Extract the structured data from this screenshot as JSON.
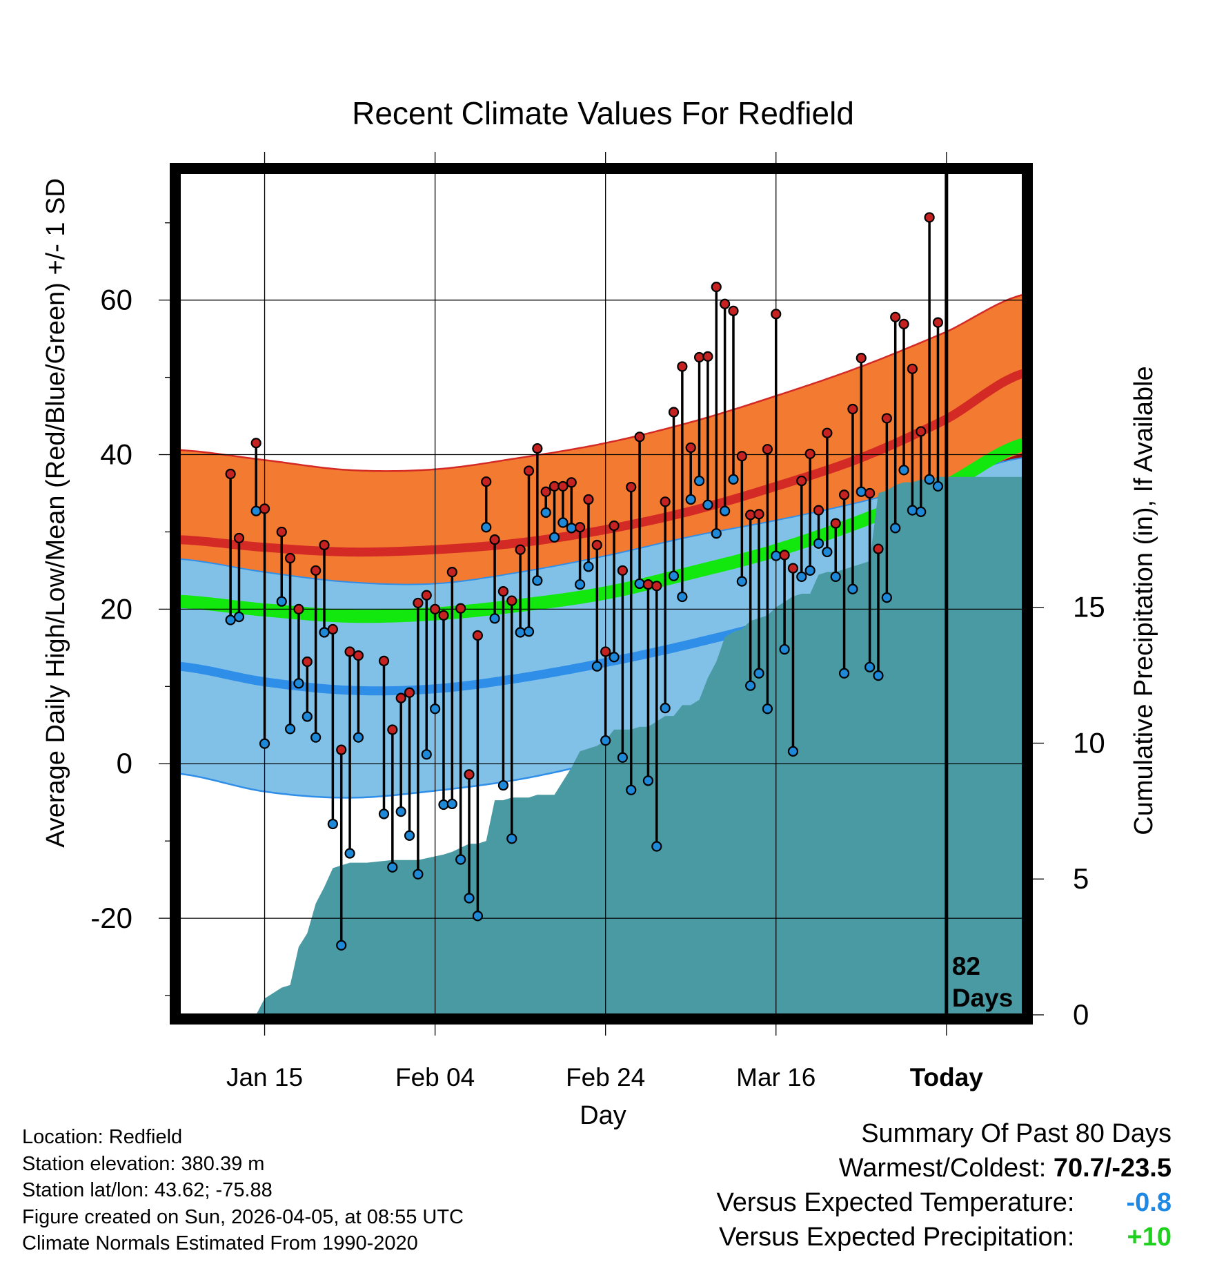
{
  "title": "Recent Climate Values For Redfield",
  "chart_data": {
    "type": "climate-range",
    "title": "Recent Climate Values For Redfield",
    "xlabel": "Day",
    "ylabel_left": "Average Daily High/Low/Mean (Red/Blue/Green) +/- 1 SD",
    "ylabel_right": "Cumulative Precipitation (in), If Available",
    "x_range_days": [
      -113,
      -91
    ],
    "x_ticks": [
      {
        "label": "Jan 15",
        "day": -80
      },
      {
        "label": "Feb 04",
        "day": -60
      },
      {
        "label": "Feb 24",
        "day": -40
      },
      {
        "label": "Mar 16",
        "day": -20
      },
      {
        "label": "Today",
        "day": 0
      }
    ],
    "x_limits": [
      -90,
      9
    ],
    "y_left_limits": [
      -32.5,
      76.5
    ],
    "y_left_ticks": [
      -20,
      0,
      20,
      40,
      60
    ],
    "y_right_limits": [
      0,
      31
    ],
    "y_right_ticks": [
      0,
      5,
      10,
      15
    ],
    "today_marker": {
      "day": 0,
      "label_line1": "82",
      "label_line2": "Days"
    },
    "normals": {
      "days": [
        -90,
        -80,
        -70,
        -60,
        -50,
        -40,
        -30,
        -20,
        -10,
        0,
        9
      ],
      "high_plus_sd": [
        40.6,
        39.3,
        38.0,
        38.1,
        39.6,
        41.5,
        44.2,
        47.6,
        51.4,
        55.9,
        60.7
      ],
      "high_mean": [
        29.0,
        28.0,
        27.4,
        27.7,
        28.6,
        30.3,
        32.7,
        35.9,
        39.6,
        44.6,
        50.5
      ],
      "high_minus_sd": [
        17.8,
        16.2,
        15.9,
        16.6,
        18.2,
        20.5,
        23.4,
        26.6,
        30.3,
        35.2,
        40.2
      ],
      "mean": [
        21.0,
        19.9,
        19.1,
        19.4,
        20.5,
        22.1,
        24.7,
        27.6,
        31.4,
        36.0,
        41.3
      ],
      "low_plus_sd": [
        26.5,
        24.8,
        23.5,
        23.3,
        24.8,
        26.9,
        29.4,
        31.5,
        33.9,
        36.8,
        39.6
      ],
      "low_mean": [
        12.6,
        10.6,
        9.5,
        9.7,
        11.1,
        13.1,
        15.5,
        18.4,
        22.5,
        27.0,
        31.7
      ],
      "low_minus_sd": [
        -1.3,
        -3.6,
        -4.4,
        -3.5,
        -2.0,
        0.4,
        3.2,
        7.1,
        12.7,
        18.5,
        24.0
      ]
    },
    "daily": {
      "start_day": -84,
      "high": [
        37.5,
        29.2,
        null,
        41.5,
        33.0,
        null,
        30.0,
        26.6,
        20.0,
        13.2,
        25.0,
        28.3,
        17.4,
        1.8,
        14.5,
        14.0,
        null,
        null,
        13.3,
        4.4,
        8.5,
        9.2,
        20.8,
        21.8,
        20.0,
        19.2,
        24.8,
        20.1,
        -1.4,
        16.6,
        36.5,
        29.0,
        22.3,
        21.1,
        27.7,
        37.9,
        40.8,
        35.2,
        35.9,
        35.9,
        36.4,
        30.6,
        34.2,
        28.3,
        14.5,
        30.8,
        25.0,
        35.8,
        42.3,
        23.2,
        23.0,
        33.9,
        45.5,
        51.4,
        40.9,
        52.6,
        52.7,
        61.7,
        59.5,
        58.6,
        39.8,
        32.2,
        32.3,
        40.7,
        58.2,
        27.0,
        25.3,
        36.6,
        40.1,
        32.8,
        42.8,
        31.1,
        34.8,
        45.9,
        52.5,
        35.0,
        27.8,
        44.7,
        57.8,
        56.9,
        51.1,
        43.0,
        70.7,
        57.1
      ],
      "low": [
        18.6,
        19.0,
        null,
        32.7,
        2.6,
        null,
        21.0,
        4.5,
        10.4,
        6.1,
        3.4,
        17.0,
        -7.8,
        -23.5,
        -11.6,
        3.4,
        null,
        null,
        -6.5,
        -13.4,
        -6.2,
        -9.3,
        -14.3,
        1.2,
        7.1,
        -5.3,
        -5.2,
        -12.4,
        -17.4,
        -19.7,
        30.6,
        18.8,
        -2.8,
        -9.7,
        17.0,
        17.1,
        23.7,
        32.5,
        29.3,
        31.2,
        30.5,
        23.2,
        25.5,
        12.6,
        3.0,
        13.8,
        0.8,
        -3.4,
        23.3,
        -2.2,
        -10.7,
        7.2,
        24.3,
        21.6,
        34.2,
        36.6,
        33.5,
        29.8,
        32.7,
        36.8,
        23.6,
        10.1,
        11.7,
        7.1,
        26.9,
        14.8,
        1.6,
        24.2,
        25.0,
        28.5,
        27.4,
        24.2,
        11.7,
        22.6,
        35.2,
        12.5,
        11.4,
        21.5,
        30.5,
        38.0,
        32.8,
        32.6,
        36.8,
        35.9
      ]
    },
    "precip_cumulative": {
      "days": [
        -81,
        -80,
        -79,
        -78,
        -77,
        -76,
        -75,
        -74,
        -73,
        -72,
        -71,
        -70,
        -69,
        -68,
        -65,
        -62,
        -59,
        -58,
        -56,
        -55,
        -54,
        -53,
        -52,
        -51,
        -50,
        -49,
        -48,
        -47,
        -46,
        -44,
        -43,
        -42,
        -41,
        -40,
        -39,
        -38,
        -37,
        -36,
        -35,
        -34,
        -33,
        -32,
        -31,
        -30,
        -29,
        -28,
        -27,
        -26,
        -25,
        -24,
        -23,
        -22,
        -21,
        -20,
        -19,
        -18,
        -17,
        -16,
        -15,
        -14,
        -13,
        -12,
        -11,
        -10,
        -9,
        -8,
        -7,
        -6,
        -5,
        -4,
        -3,
        -2,
        -1,
        0,
        9
      ],
      "values": [
        0.0,
        0.6,
        0.8,
        1.0,
        1.1,
        2.5,
        3.0,
        4.1,
        4.7,
        5.4,
        5.5,
        5.6,
        5.6,
        5.6,
        5.7,
        5.7,
        5.9,
        6.0,
        6.3,
        6.3,
        6.4,
        7.9,
        7.9,
        8.0,
        8.0,
        8.0,
        8.1,
        8.1,
        8.1,
        9.1,
        9.7,
        9.8,
        9.9,
        10.1,
        10.5,
        10.5,
        10.5,
        10.6,
        10.6,
        10.8,
        11.0,
        11.0,
        11.4,
        11.4,
        11.6,
        12.4,
        13.0,
        13.9,
        14.1,
        14.2,
        14.5,
        14.6,
        14.7,
        15.0,
        15.2,
        15.4,
        15.5,
        15.5,
        16.2,
        16.3,
        16.3,
        16.4,
        16.5,
        16.6,
        16.7,
        19.2,
        19.3,
        19.5,
        19.6,
        19.6,
        19.7,
        19.7,
        19.8,
        19.8,
        19.8
      ]
    }
  },
  "info": {
    "location": "Location: Redfield",
    "elevation": "Station elevation: 380.39 m",
    "latlon": "Station lat/lon: 43.62; -75.88",
    "created": "Figure created on Sun, 2026-04-05, at 08:55 UTC",
    "normals": "Climate Normals Estimated From 1990-2020"
  },
  "summary": {
    "heading": "Summary Of Past 80 Days",
    "warm_cold_label": "Warmest/Coldest:",
    "warm_cold_value": "70.7/-23.5",
    "temp_label": "Versus Expected Temperature:",
    "temp_value": "-0.8",
    "precip_label": "Versus Expected Precipitation:",
    "precip_value": "+10"
  },
  "colors": {
    "orange_band": "#f37b31",
    "dark_red_band": "#960f10",
    "red_line": "#d42a26",
    "green_band": "#12e70e",
    "light_blue_band": "#82c1e7",
    "blue_line": "#2f8ee8",
    "precip_fill": "#4a9aa3",
    "high_dot": "#c62222",
    "low_dot": "#1e88d9"
  }
}
